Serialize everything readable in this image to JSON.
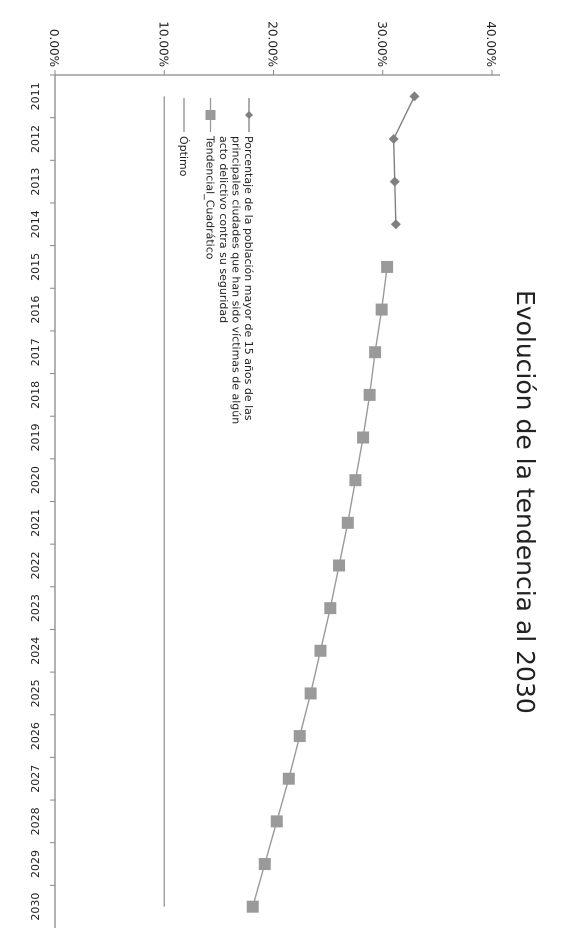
{
  "chart_data": {
    "type": "line",
    "title": "Evolución de la tendencia al 2030",
    "x": [
      "2011",
      "2012",
      "2013",
      "2014",
      "2015",
      "2016",
      "2017",
      "2018",
      "2019",
      "2020",
      "2021",
      "2022",
      "2023",
      "2024",
      "2025",
      "2026",
      "2027",
      "2028",
      "2029",
      "2030"
    ],
    "ylim": [
      0,
      40
    ],
    "yticks": [
      "0.00%",
      "10.00%",
      "20.00%",
      "30.00%",
      "40.00%"
    ],
    "series": [
      {
        "name": "Porcentaje de la población mayor de 15 años de las principales ciudades que han sido víctimas de algún acto delictivo contra su seguridad",
        "marker": "diamond",
        "values": [
          32.9,
          31.0,
          31.1,
          31.2,
          null,
          null,
          null,
          null,
          null,
          null,
          null,
          null,
          null,
          null,
          null,
          null,
          null,
          null,
          null,
          null
        ]
      },
      {
        "name": "Tendencial_Cuadrático",
        "marker": "square",
        "values": [
          null,
          null,
          null,
          null,
          30.4,
          29.9,
          29.3,
          28.8,
          28.2,
          27.5,
          26.8,
          26.0,
          25.2,
          24.3,
          23.4,
          22.4,
          21.4,
          20.3,
          19.2,
          18.1
        ]
      },
      {
        "name": "Óptimo",
        "marker": "none",
        "values": [
          10,
          10,
          10,
          10,
          10,
          10,
          10,
          10,
          10,
          10,
          10,
          10,
          10,
          10,
          10,
          10,
          10,
          10,
          10,
          10
        ]
      }
    ],
    "legend": {
      "placement": "inside, lower-left of plot",
      "lines": [
        [
          "Porcentaje de la población mayor de 15 años de las",
          "principales ciudades que han sido víctimas de algún",
          "acto delictivo contra su seguridad"
        ],
        [
          "Tendencial_Cuadrático"
        ],
        [
          "Óptimo"
        ]
      ]
    },
    "colors": {
      "series_observed": "#808080",
      "series_trend": "#9a9a9a",
      "optimo": "#8c8c8c",
      "axis": "#888888",
      "text": "#222222"
    }
  }
}
